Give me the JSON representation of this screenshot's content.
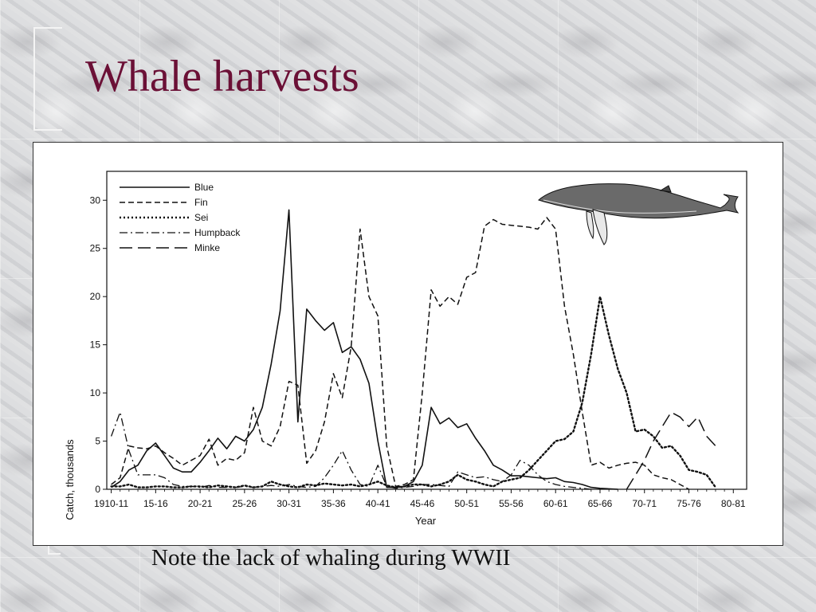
{
  "slide": {
    "title": "Whale harvests",
    "caption": "Note the lack of whaling during WWII"
  },
  "chart_data": {
    "type": "line",
    "title": "",
    "xlabel": "Year",
    "ylabel": "Catch, thousands",
    "ylim": [
      0,
      33
    ],
    "yticks": [
      0,
      5,
      10,
      15,
      20,
      25,
      30
    ],
    "grid": false,
    "legend_position": "top-left",
    "xtick_labels": [
      {
        "label": "1910-11",
        "x": 1910
      },
      {
        "label": "15-16",
        "x": 1915
      },
      {
        "label": "20-21",
        "x": 1920
      },
      {
        "label": "25-26",
        "x": 1925
      },
      {
        "label": "30-31",
        "x": 1930
      },
      {
        "label": "35-36",
        "x": 1935
      },
      {
        "label": "40-41",
        "x": 1940
      },
      {
        "label": "45-46",
        "x": 1945
      },
      {
        "label": "50-51",
        "x": 1950
      },
      {
        "label": "55-56",
        "x": 1955
      },
      {
        "label": "60-61",
        "x": 1960
      },
      {
        "label": "65-66",
        "x": 1965
      },
      {
        "label": "70-71",
        "x": 1970
      },
      {
        "label": "75-76",
        "x": 1975
      },
      {
        "label": "80-81",
        "x": 1980
      }
    ],
    "xlim": [
      1909.5,
      1981.5
    ],
    "series": [
      {
        "name": "Blue",
        "dash": "solid",
        "points": [
          [
            1910,
            0.2
          ],
          [
            1911,
            0.8
          ],
          [
            1912,
            2
          ],
          [
            1913,
            2.5
          ],
          [
            1914,
            4
          ],
          [
            1915,
            4.8
          ],
          [
            1916,
            3.5
          ],
          [
            1917,
            2.2
          ],
          [
            1918,
            1.8
          ],
          [
            1919,
            1.8
          ],
          [
            1920,
            2.8
          ],
          [
            1921,
            4
          ],
          [
            1922,
            5.3
          ],
          [
            1923,
            4.2
          ],
          [
            1924,
            5.5
          ],
          [
            1925,
            5
          ],
          [
            1926,
            6.2
          ],
          [
            1927,
            8.5
          ],
          [
            1928,
            13
          ],
          [
            1929,
            18.5
          ],
          [
            1930,
            29
          ],
          [
            1931,
            7
          ],
          [
            1932,
            18.7
          ],
          [
            1933,
            17.5
          ],
          [
            1934,
            16.5
          ],
          [
            1935,
            17.3
          ],
          [
            1936,
            14.2
          ],
          [
            1937,
            14.8
          ],
          [
            1938,
            13.5
          ],
          [
            1939,
            11
          ],
          [
            1940,
            5
          ],
          [
            1941,
            0.2
          ],
          [
            1942,
            0.2
          ],
          [
            1943,
            0.3
          ],
          [
            1944,
            0.8
          ],
          [
            1945,
            2.5
          ],
          [
            1946,
            8.5
          ],
          [
            1947,
            6.8
          ],
          [
            1948,
            7.4
          ],
          [
            1949,
            6.4
          ],
          [
            1950,
            6.8
          ],
          [
            1951,
            5.3
          ],
          [
            1952,
            4
          ],
          [
            1953,
            2.5
          ],
          [
            1954,
            2
          ],
          [
            1955,
            1.4
          ],
          [
            1956,
            1.4
          ],
          [
            1957,
            1.3
          ],
          [
            1958,
            1.2
          ],
          [
            1959,
            1.1
          ],
          [
            1960,
            1.2
          ],
          [
            1961,
            0.8
          ],
          [
            1962,
            0.7
          ],
          [
            1963,
            0.5
          ],
          [
            1964,
            0.2
          ],
          [
            1965,
            0.1
          ],
          [
            1966,
            0.05
          ],
          [
            1967,
            0
          ]
        ]
      },
      {
        "name": "Fin",
        "dash": "dashed",
        "points": [
          [
            1910,
            0.5
          ],
          [
            1911,
            1.2
          ],
          [
            1912,
            4.5
          ],
          [
            1913,
            4.3
          ],
          [
            1914,
            4.2
          ],
          [
            1915,
            4.5
          ],
          [
            1916,
            3.8
          ],
          [
            1917,
            3.2
          ],
          [
            1918,
            2.5
          ],
          [
            1919,
            3
          ],
          [
            1920,
            3.5
          ],
          [
            1921,
            5.2
          ],
          [
            1922,
            2.5
          ],
          [
            1923,
            3.2
          ],
          [
            1924,
            3
          ],
          [
            1925,
            3.8
          ],
          [
            1926,
            8.5
          ],
          [
            1927,
            5
          ],
          [
            1928,
            4.5
          ],
          [
            1929,
            6.5
          ],
          [
            1930,
            11.2
          ],
          [
            1931,
            10.8
          ],
          [
            1932,
            2.7
          ],
          [
            1933,
            4
          ],
          [
            1934,
            7
          ],
          [
            1935,
            12
          ],
          [
            1936,
            9.5
          ],
          [
            1937,
            14.8
          ],
          [
            1938,
            27
          ],
          [
            1939,
            20
          ],
          [
            1940,
            18
          ],
          [
            1941,
            4.5
          ],
          [
            1942,
            0.3
          ],
          [
            1943,
            0.5
          ],
          [
            1944,
            1
          ],
          [
            1945,
            10
          ],
          [
            1946,
            20.7
          ],
          [
            1947,
            19
          ],
          [
            1948,
            20
          ],
          [
            1949,
            19.2
          ],
          [
            1950,
            22
          ],
          [
            1951,
            22.5
          ],
          [
            1952,
            27.3
          ],
          [
            1953,
            28
          ],
          [
            1954,
            27.5
          ],
          [
            1955,
            27.4
          ],
          [
            1956,
            27.3
          ],
          [
            1957,
            27.2
          ],
          [
            1958,
            27
          ],
          [
            1959,
            28.2
          ],
          [
            1960,
            27
          ],
          [
            1961,
            19
          ],
          [
            1962,
            14
          ],
          [
            1963,
            8
          ],
          [
            1964,
            2.5
          ],
          [
            1965,
            2.8
          ],
          [
            1966,
            2.2
          ],
          [
            1967,
            2.5
          ],
          [
            1968,
            2.7
          ],
          [
            1969,
            2.8
          ],
          [
            1970,
            2.5
          ],
          [
            1971,
            1.5
          ],
          [
            1972,
            1.2
          ],
          [
            1973,
            1
          ],
          [
            1974,
            0.5
          ],
          [
            1975,
            0
          ]
        ]
      },
      {
        "name": "Sei",
        "dash": "dotted",
        "points": [
          [
            1910,
            0.3
          ],
          [
            1911,
            0.3
          ],
          [
            1912,
            0.5
          ],
          [
            1913,
            0.2
          ],
          [
            1914,
            0.2
          ],
          [
            1915,
            0.3
          ],
          [
            1916,
            0.3
          ],
          [
            1917,
            0.2
          ],
          [
            1918,
            0.2
          ],
          [
            1919,
            0.3
          ],
          [
            1920,
            0.3
          ],
          [
            1921,
            0.2
          ],
          [
            1922,
            0.4
          ],
          [
            1923,
            0.3
          ],
          [
            1924,
            0.2
          ],
          [
            1925,
            0.4
          ],
          [
            1926,
            0.2
          ],
          [
            1927,
            0.3
          ],
          [
            1928,
            0.8
          ],
          [
            1929,
            0.5
          ],
          [
            1930,
            0.3
          ],
          [
            1931,
            0.2
          ],
          [
            1932,
            0.5
          ],
          [
            1933,
            0.4
          ],
          [
            1934,
            0.6
          ],
          [
            1935,
            0.5
          ],
          [
            1936,
            0.4
          ],
          [
            1937,
            0.5
          ],
          [
            1938,
            0.3
          ],
          [
            1939,
            0.5
          ],
          [
            1940,
            0.8
          ],
          [
            1941,
            0.4
          ],
          [
            1942,
            0.2
          ],
          [
            1943,
            0.3
          ],
          [
            1944,
            0.5
          ],
          [
            1945,
            0.5
          ],
          [
            1946,
            0.3
          ],
          [
            1947,
            0.5
          ],
          [
            1948,
            0.8
          ],
          [
            1949,
            1.5
          ],
          [
            1950,
            1
          ],
          [
            1951,
            0.8
          ],
          [
            1952,
            0.5
          ],
          [
            1953,
            0.3
          ],
          [
            1954,
            0.8
          ],
          [
            1955,
            1
          ],
          [
            1956,
            1.2
          ],
          [
            1957,
            2
          ],
          [
            1958,
            3
          ],
          [
            1959,
            4
          ],
          [
            1960,
            5
          ],
          [
            1961,
            5.2
          ],
          [
            1962,
            6
          ],
          [
            1963,
            9
          ],
          [
            1964,
            14
          ],
          [
            1965,
            20
          ],
          [
            1966,
            16
          ],
          [
            1967,
            12.5
          ],
          [
            1968,
            10
          ],
          [
            1969,
            6
          ],
          [
            1970,
            6.2
          ],
          [
            1971,
            5.5
          ],
          [
            1972,
            4.3
          ],
          [
            1973,
            4.5
          ],
          [
            1974,
            3.5
          ],
          [
            1975,
            2
          ],
          [
            1976,
            1.8
          ],
          [
            1977,
            1.5
          ],
          [
            1978,
            0.2
          ]
        ]
      },
      {
        "name": "Humpback",
        "dash": "dashdot",
        "points": [
          [
            1910,
            5.5
          ],
          [
            1911,
            8
          ],
          [
            1912,
            4
          ],
          [
            1913,
            1.5
          ],
          [
            1914,
            1.5
          ],
          [
            1915,
            1.5
          ],
          [
            1916,
            1.2
          ],
          [
            1917,
            0.5
          ],
          [
            1918,
            0.3
          ],
          [
            1919,
            0.3
          ],
          [
            1920,
            0.2
          ],
          [
            1921,
            0.4
          ],
          [
            1922,
            0.2
          ],
          [
            1923,
            0.2
          ],
          [
            1924,
            0.2
          ],
          [
            1925,
            0.3
          ],
          [
            1926,
            0.2
          ],
          [
            1927,
            0.3
          ],
          [
            1928,
            0.4
          ],
          [
            1929,
            0.3
          ],
          [
            1930,
            0.5
          ],
          [
            1931,
            0.3
          ],
          [
            1932,
            0.2
          ],
          [
            1933,
            0.3
          ],
          [
            1934,
            1.2
          ],
          [
            1935,
            2.5
          ],
          [
            1936,
            4
          ],
          [
            1937,
            2
          ],
          [
            1938,
            0.5
          ],
          [
            1939,
            0.3
          ],
          [
            1940,
            2.5
          ],
          [
            1941,
            0.3
          ],
          [
            1942,
            0.1
          ],
          [
            1943,
            0.2
          ],
          [
            1944,
            0.3
          ],
          [
            1945,
            0.5
          ],
          [
            1946,
            0.5
          ],
          [
            1947,
            0.4
          ],
          [
            1948,
            0.3
          ],
          [
            1949,
            1.8
          ],
          [
            1950,
            1.5
          ],
          [
            1951,
            1.2
          ],
          [
            1952,
            1.3
          ],
          [
            1953,
            1
          ],
          [
            1954,
            0.8
          ],
          [
            1955,
            1.5
          ],
          [
            1956,
            3
          ],
          [
            1957,
            2.5
          ],
          [
            1958,
            1.5
          ],
          [
            1959,
            0.8
          ],
          [
            1960,
            0.5
          ],
          [
            1961,
            0.3
          ],
          [
            1962,
            0.2
          ],
          [
            1963,
            0.1
          ],
          [
            1964,
            0
          ]
        ]
      },
      {
        "name": "Minke",
        "dash": "longdash",
        "points": [
          [
            1968,
            0
          ],
          [
            1969,
            1.5
          ],
          [
            1970,
            3
          ],
          [
            1971,
            5
          ],
          [
            1972,
            6.5
          ],
          [
            1973,
            8
          ],
          [
            1974,
            7.5
          ],
          [
            1975,
            6.5
          ],
          [
            1976,
            7.5
          ],
          [
            1977,
            5.5
          ],
          [
            1978,
            4.5
          ]
        ]
      }
    ]
  }
}
